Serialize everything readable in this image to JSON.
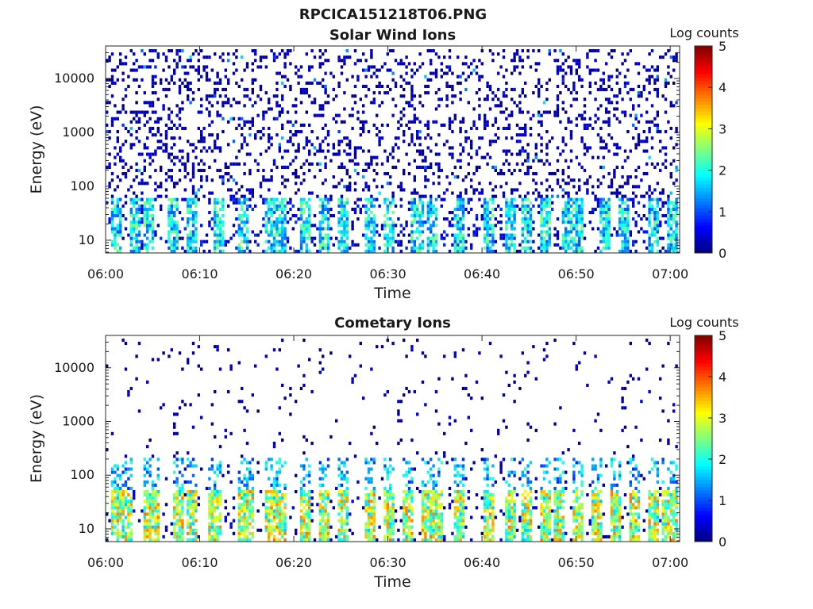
{
  "figure_title": "RPCICA151218T06.PNG",
  "chart_data": [
    {
      "type": "heatmap",
      "title": "Solar Wind Ions",
      "xlabel": "Time",
      "ylabel": "Energy (eV)",
      "x_ticks": [
        "06:00",
        "06:10",
        "06:20",
        "06:30",
        "06:40",
        "06:50",
        "07:00"
      ],
      "x_range": [
        "06:00",
        "07:01"
      ],
      "y_ticks": [
        "10",
        "100",
        "1000",
        "10000"
      ],
      "y_scale": "log",
      "y_range": [
        5.8,
        40000
      ],
      "colorbar": {
        "label": "Log counts",
        "ticks": [
          "0",
          "1",
          "2",
          "3",
          "4",
          "5"
        ],
        "range": [
          0,
          5
        ],
        "colormap": "jet"
      },
      "pattern": "sparse single counts (log 0-1) across all energies; stronger bursts (log 1-2.5) below 60 eV"
    },
    {
      "type": "heatmap",
      "title": "Cometary Ions",
      "xlabel": "Time",
      "ylabel": "Energy (eV)",
      "x_ticks": [
        "06:00",
        "06:10",
        "06:20",
        "06:30",
        "06:40",
        "06:50",
        "07:00"
      ],
      "x_range": [
        "06:00",
        "07:01"
      ],
      "y_ticks": [
        "10",
        "100",
        "1000",
        "10000"
      ],
      "y_scale": "log",
      "y_range": [
        5.8,
        40000
      ],
      "colorbar": {
        "label": "Log counts",
        "ticks": [
          "0",
          "1",
          "2",
          "3",
          "4",
          "5"
        ],
        "range": [
          0,
          5
        ],
        "colormap": "jet"
      },
      "pattern": "repeated bursts below 50 eV reaching log 3-4; sparse counts above 100 eV",
      "bursts_minutes": [
        1,
        2,
        4.5,
        5,
        7.5,
        9,
        11.5,
        14.5,
        15,
        17.5,
        18.5,
        21,
        23,
        25,
        28,
        30,
        32,
        34,
        35,
        37.5,
        40.5,
        43,
        44.5,
        46.5,
        48,
        50,
        52,
        54,
        56,
        58,
        59.5,
        60.5
      ]
    }
  ]
}
